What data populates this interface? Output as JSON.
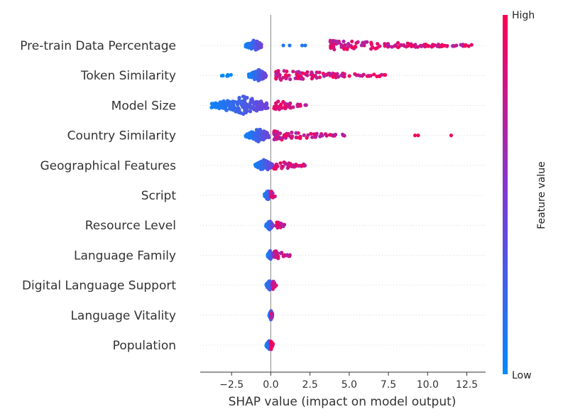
{
  "chart_data": {
    "type": "scatter",
    "subtype": "shap-beeswarm",
    "title": "",
    "xlabel": "SHAP value (impact on model output)",
    "xlim": [
      -4.5,
      13.7
    ],
    "x_ticks": [
      -2.5,
      0.0,
      2.5,
      5.0,
      7.5,
      10.0,
      12.5
    ],
    "x_tick_labels": [
      "−2.5",
      "0.0",
      "2.5",
      "5.0",
      "7.5",
      "10.0",
      "12.5"
    ],
    "grid": false,
    "features": [
      {
        "name": "Pre-train Data Percentage",
        "low_cluster": [
          -1.6,
          -0.6
        ],
        "high_range": [
          3.8,
          12.9
        ],
        "outliers": [
          0.8,
          1.2,
          2.0,
          2.2
        ]
      },
      {
        "name": "Token Similarity",
        "low_cluster": [
          -1.4,
          -0.3
        ],
        "high_range": [
          0.3,
          7.4
        ],
        "low_tail": [
          -3.2,
          -2.5
        ]
      },
      {
        "name": "Model Size",
        "low_cluster": [
          -3.8,
          -0.2
        ],
        "high_range": [
          0.2,
          2.4
        ]
      },
      {
        "name": "Country Similarity",
        "low_cluster": [
          -1.6,
          -0.1
        ],
        "high_range": [
          0.2,
          4.8
        ],
        "outliers": [
          9.2,
          9.4,
          11.5
        ]
      },
      {
        "name": "Geographical Features",
        "low_cluster": [
          -1.0,
          0.1
        ],
        "high_range": [
          0.2,
          2.2
        ]
      },
      {
        "name": "Script",
        "low_cluster": [
          -0.4,
          0.0
        ],
        "high_range": [
          0.0,
          0.3
        ]
      },
      {
        "name": "Resource Level",
        "low_cluster": [
          -0.3,
          0.1
        ],
        "high_range": [
          0.3,
          0.9
        ]
      },
      {
        "name": "Language Family",
        "low_cluster": [
          -0.2,
          0.1
        ],
        "high_range": [
          0.2,
          1.3
        ]
      },
      {
        "name": "Digital Language Support",
        "low_cluster": [
          -0.3,
          0.1
        ],
        "high_range": [
          0.1,
          0.4
        ]
      },
      {
        "name": "Language Vitality",
        "low_cluster": [
          -0.1,
          0.1
        ],
        "high_range": [
          0.0,
          0.1
        ]
      },
      {
        "name": "Population",
        "low_cluster": [
          -0.3,
          0.1
        ],
        "high_range": [
          0.0,
          0.2
        ]
      }
    ],
    "colorbar": {
      "label": "Feature value",
      "high_label": "High",
      "low_label": "Low",
      "low_color": "#008bfb",
      "mid_color": "#7f38d5",
      "high_color": "#ff0052"
    }
  }
}
